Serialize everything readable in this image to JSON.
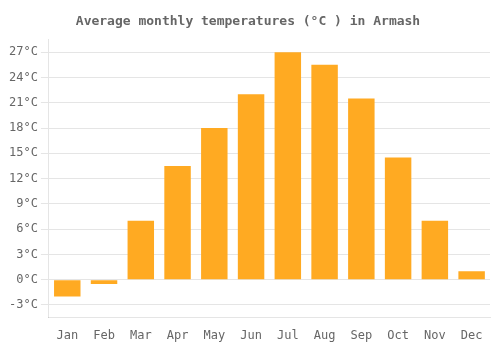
{
  "chart_data": {
    "type": "bar",
    "title": "Average monthly temperatures (°C ) in Armash",
    "categories": [
      "Jan",
      "Feb",
      "Mar",
      "Apr",
      "May",
      "Jun",
      "Jul",
      "Aug",
      "Sep",
      "Oct",
      "Nov",
      "Dec"
    ],
    "values": [
      -2.0,
      -0.5,
      7.0,
      13.5,
      18.0,
      22.0,
      27.0,
      25.5,
      21.5,
      14.5,
      7.0,
      1.0
    ],
    "color": "#FFAA22",
    "ylim": [
      -4.5,
      28.5
    ],
    "yticks": [
      {
        "value": -3,
        "label": "-3°C"
      },
      {
        "value": 0,
        "label": "0°C"
      },
      {
        "value": 3,
        "label": "3°C"
      },
      {
        "value": 6,
        "label": "6°C"
      },
      {
        "value": 9,
        "label": "9°C"
      },
      {
        "value": 12,
        "label": "12°C"
      },
      {
        "value": 15,
        "label": "15°C"
      },
      {
        "value": 18,
        "label": "18°C"
      },
      {
        "value": 21,
        "label": "21°C"
      },
      {
        "value": 24,
        "label": "24°C"
      },
      {
        "value": 27,
        "label": "27°C"
      }
    ],
    "grid": true
  }
}
